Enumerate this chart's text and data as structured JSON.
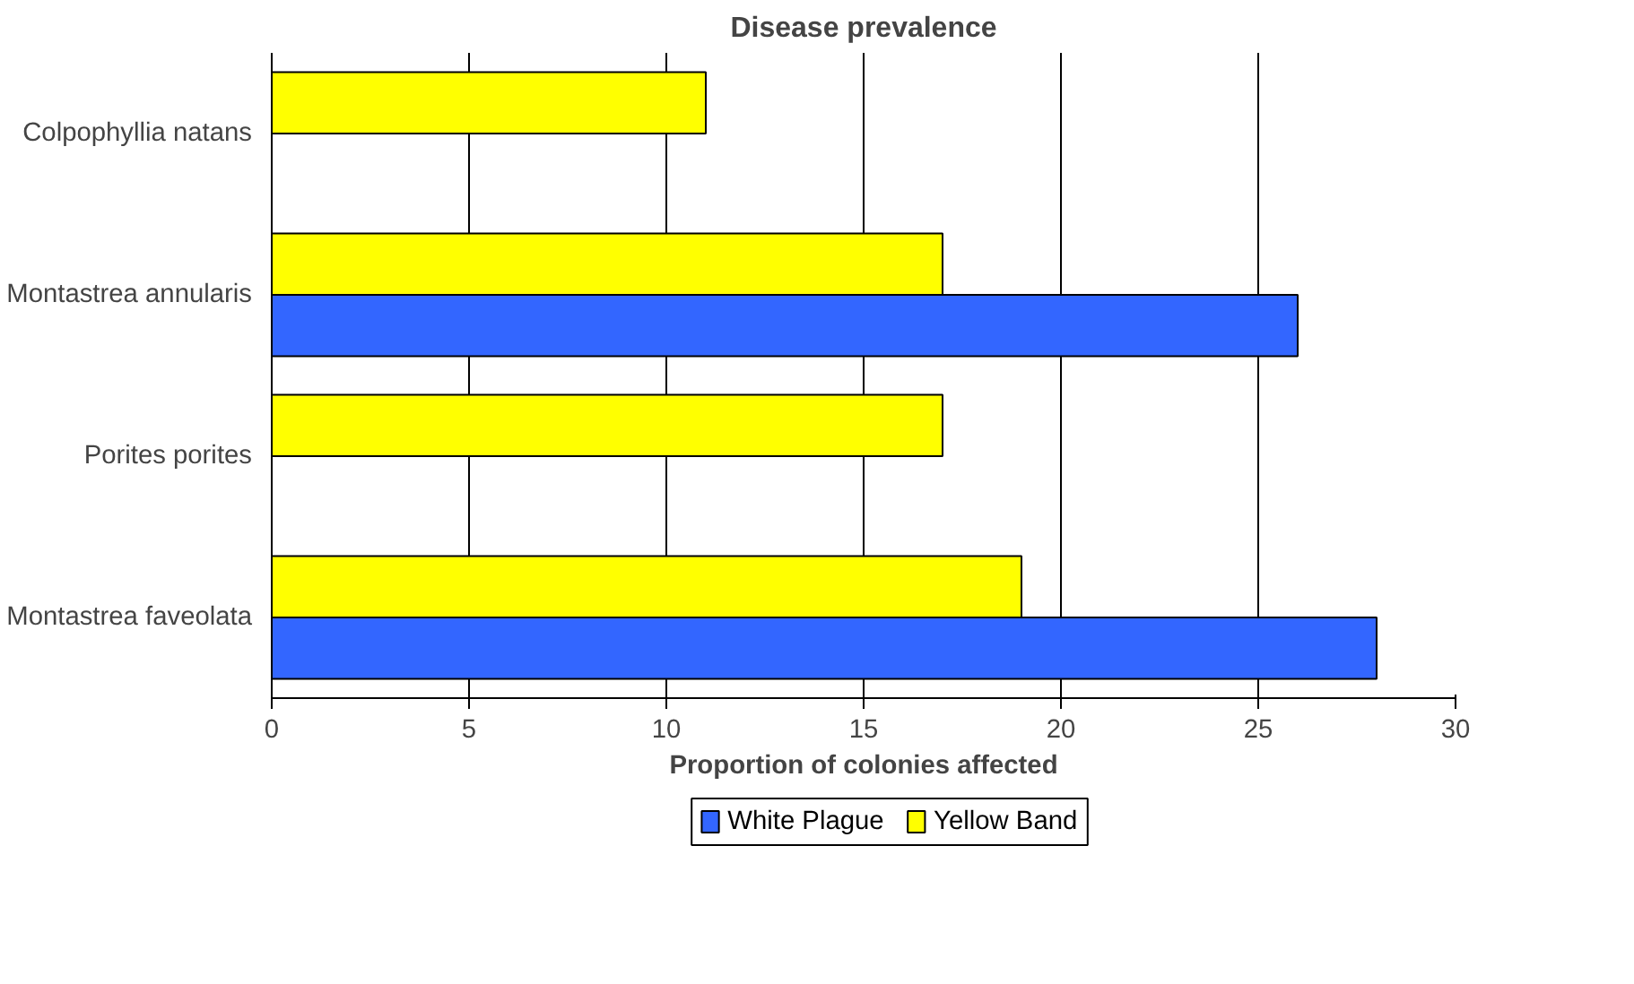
{
  "chart_data": {
    "type": "bar",
    "orientation": "horizontal",
    "title": "Disease prevalence",
    "xlabel": "Proportion of colonies affected",
    "categories": [
      "Colpophyllia natans",
      "Montastrea annularis",
      "Porites porites",
      "Montastrea faveolata"
    ],
    "series": [
      {
        "name": "White Plague",
        "color": "#3366ff",
        "values": [
          null,
          26,
          null,
          28
        ]
      },
      {
        "name": "Yellow Band",
        "color": "#ffff00",
        "values": [
          11,
          17,
          17,
          19
        ]
      }
    ],
    "xlim": [
      0,
      30
    ],
    "xticks": [
      0,
      5,
      10,
      15,
      20,
      25,
      30
    ],
    "grid": "x",
    "legend": "bottom"
  }
}
